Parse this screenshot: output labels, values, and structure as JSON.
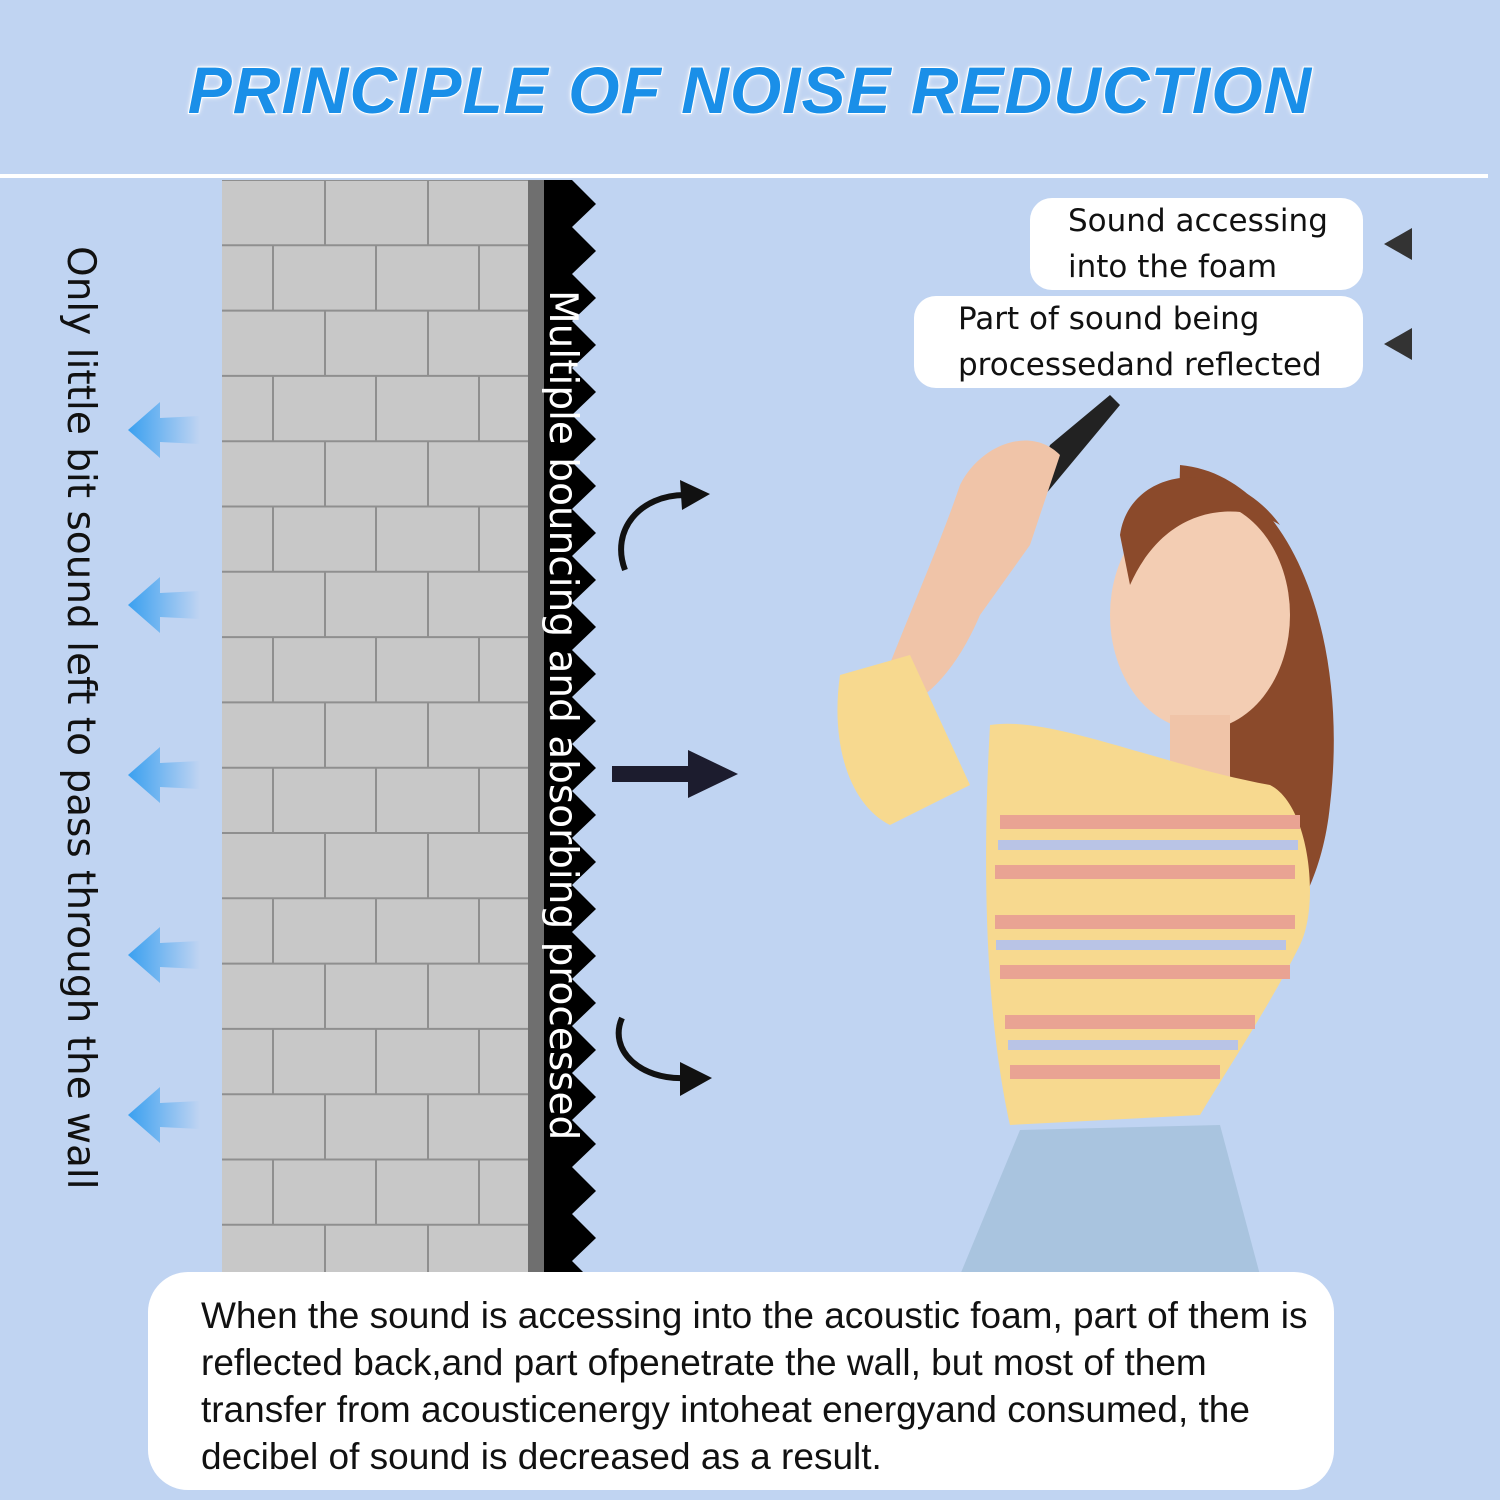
{
  "title": "PRINCIPLE OF NOISE REDUCTION",
  "wall_label": "Only little bit sound left to pass through the wall",
  "foam_label": "Multiple bouncing and absorbing processed",
  "callouts": [
    {
      "line1": "Sound accessing",
      "line2": "into the foam"
    },
    {
      "line1": "Part of sound being",
      "line2": "processedand reflected"
    }
  ],
  "description": "When the sound is accessing into the acoustic foam, part of them is reflected back,and part ofpenetrate the wall, but most of them transfer from acousticenergy intoheat energyand consumed, the decibel of sound is decreased as a result.",
  "colors": {
    "background": "#c0d4f2",
    "title": "#1a8fe8",
    "wall": "#c8c8c8",
    "foam": "#000000",
    "arrow_blue": "#3aa0f0"
  }
}
